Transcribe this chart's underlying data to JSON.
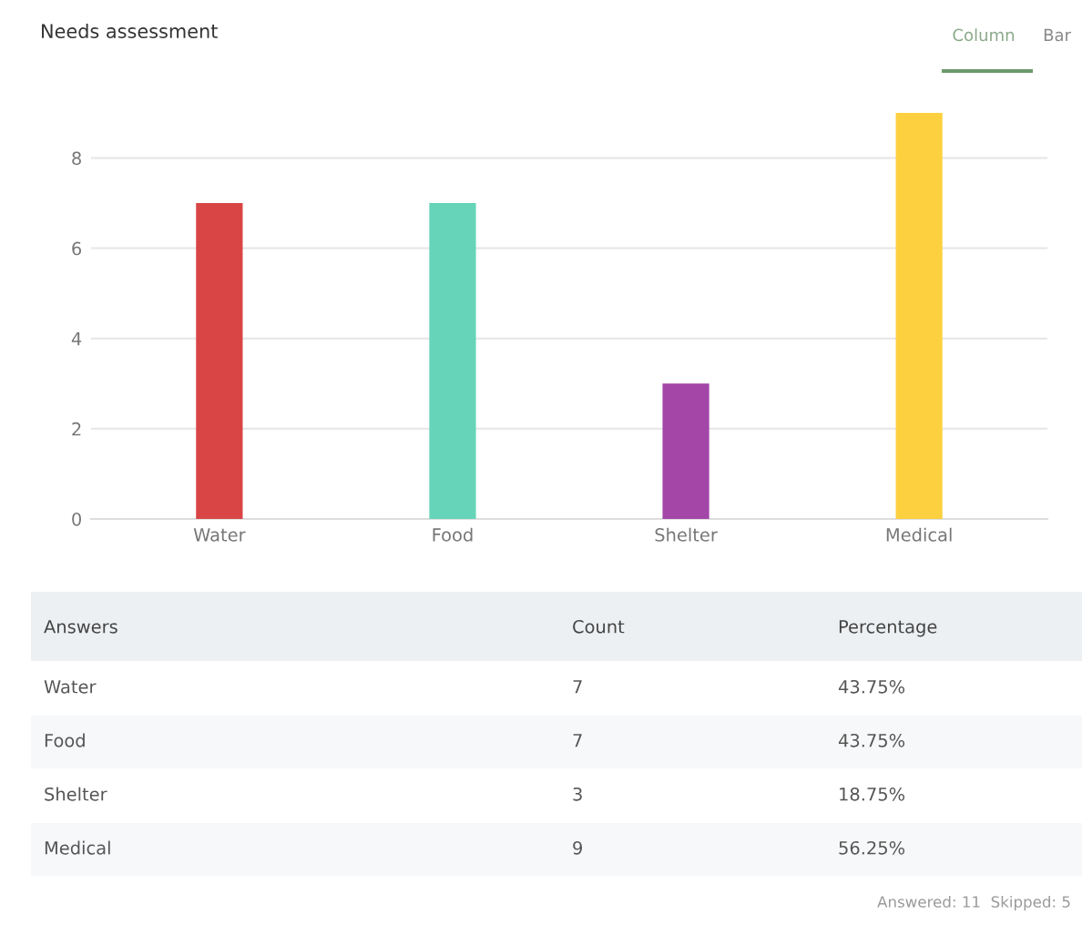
{
  "chart_data": {
    "type": "bar",
    "title": "Needs assessment",
    "categories": [
      "Water",
      "Food",
      "Shelter",
      "Medical"
    ],
    "values": [
      7,
      7,
      3,
      9
    ],
    "colors": [
      "#d94545",
      "#66d4b8",
      "#a346a8",
      "#fdd040"
    ],
    "ylim": [
      0,
      9
    ],
    "yticks": [
      0,
      2,
      4,
      6,
      8
    ],
    "grid": "y",
    "annotations": [
      "Column",
      "Bar",
      "Answers",
      "Count",
      "Percentage",
      "43.75%",
      "43.75%",
      "18.75%",
      "56.25%",
      "Answered: 11  Skipped: 5",
      "7",
      "7",
      "3",
      "9"
    ]
  }
}
